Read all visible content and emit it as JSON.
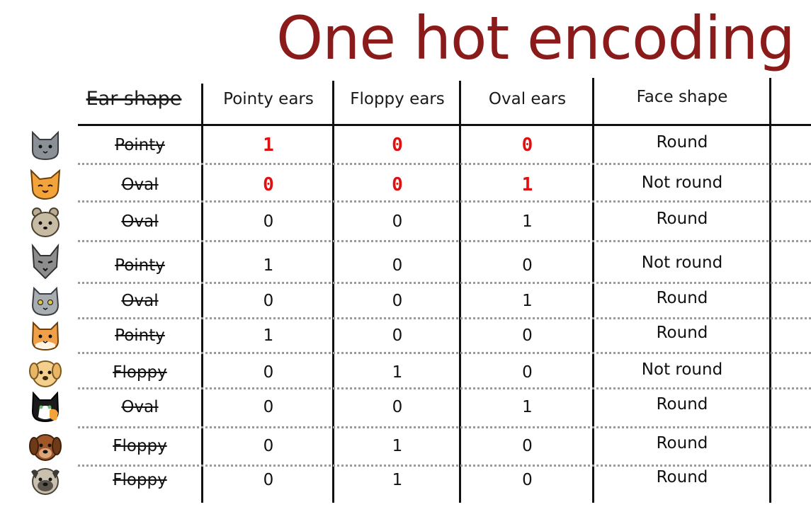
{
  "title": "One hot encoding",
  "headers": {
    "ear_shape": "Ear shape",
    "pointy": "Pointy ears",
    "floppy": "Floppy ears",
    "oval": "Oval ears",
    "face": "Face shape"
  },
  "colors": {
    "title": "#8b1a1a",
    "highlight": "#e01010",
    "rule": "#111111",
    "dots": "#9a9a9a"
  },
  "rows": [
    {
      "animal_icon": "gray-cat-icon",
      "ear": "Pointy",
      "pointy": "1",
      "floppy": "0",
      "oval": "0",
      "face": "Round",
      "highlight": true
    },
    {
      "animal_icon": "orange-cat-icon",
      "ear": "Oval",
      "pointy": "0",
      "floppy": "0",
      "oval": "1",
      "face": "Not round",
      "highlight": true
    },
    {
      "animal_icon": "tan-cat-icon",
      "ear": "Oval",
      "pointy": "0",
      "floppy": "0",
      "oval": "1",
      "face": "Round",
      "highlight": false
    },
    {
      "animal_icon": "gray-wolf-cat-icon",
      "ear": "Pointy",
      "pointy": "1",
      "floppy": "0",
      "oval": "0",
      "face": "Not round",
      "highlight": false
    },
    {
      "animal_icon": "silver-cat-icon",
      "ear": "Oval",
      "pointy": "0",
      "floppy": "0",
      "oval": "1",
      "face": "Round",
      "highlight": false
    },
    {
      "animal_icon": "ginger-cat-icon",
      "ear": "Pointy",
      "pointy": "1",
      "floppy": "0",
      "oval": "0",
      "face": "Round",
      "highlight": false
    },
    {
      "animal_icon": "golden-dog-icon",
      "ear": "Floppy",
      "pointy": "0",
      "floppy": "1",
      "oval": "0",
      "face": "Not round",
      "highlight": false
    },
    {
      "animal_icon": "tuxedo-cat-icon",
      "ear": "Oval",
      "pointy": "0",
      "floppy": "0",
      "oval": "1",
      "face": "Round",
      "highlight": false
    },
    {
      "animal_icon": "brown-dog-icon",
      "ear": "Floppy",
      "pointy": "0",
      "floppy": "1",
      "oval": "0",
      "face": "Round",
      "highlight": false
    },
    {
      "animal_icon": "pug-dog-icon",
      "ear": "Floppy",
      "pointy": "0",
      "floppy": "1",
      "oval": "0",
      "face": "Round",
      "highlight": false
    }
  ]
}
